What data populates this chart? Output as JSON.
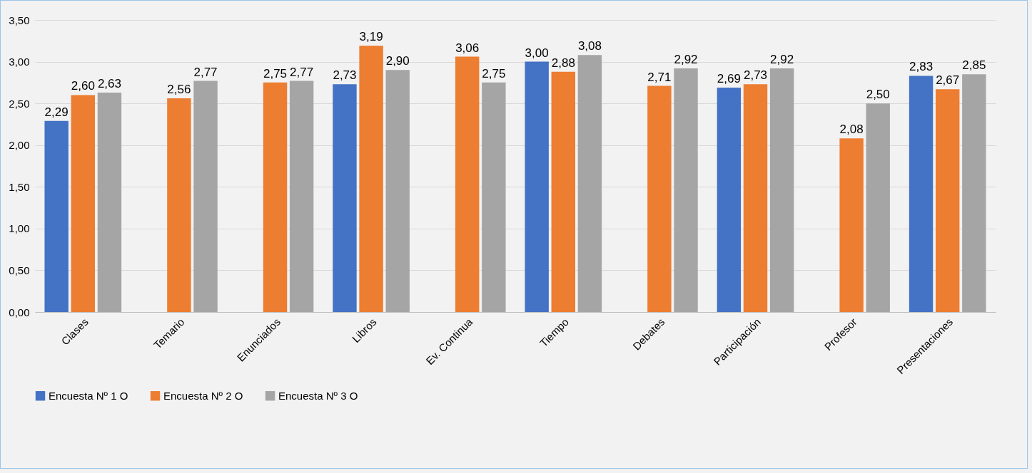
{
  "chart_data": {
    "type": "bar",
    "categories": [
      "Clases",
      "Temario",
      "Enunciados",
      "Libros",
      "Ev. Continua",
      "Tiempo",
      "Debates",
      "Participación",
      "Profesor",
      "Presentaciones"
    ],
    "series": [
      {
        "name": "Encuesta Nº 1 O",
        "color": "#4472c4",
        "values": [
          2.29,
          null,
          null,
          2.73,
          null,
          3.0,
          null,
          2.69,
          null,
          2.83
        ],
        "value_labels": [
          "2,29",
          null,
          null,
          "2,73",
          null,
          "3,00",
          null,
          "2,69",
          null,
          "2,83"
        ]
      },
      {
        "name": "Encuesta Nº 2 O",
        "color": "#ed7d31",
        "values": [
          2.6,
          2.56,
          2.75,
          3.19,
          3.06,
          2.88,
          2.71,
          2.73,
          2.08,
          2.67
        ],
        "value_labels": [
          "2,60",
          "2,56",
          "2,75",
          "3,19",
          "3,06",
          "2,88",
          "2,71",
          "2,73",
          "2,08",
          "2,67"
        ]
      },
      {
        "name": "Encuesta Nº 3 O",
        "color": "#a5a5a5",
        "values": [
          2.63,
          2.77,
          2.77,
          2.9,
          2.75,
          3.08,
          2.92,
          2.92,
          2.5,
          2.85
        ],
        "value_labels": [
          "2,63",
          "2,77",
          "2,77",
          "2,90",
          "2,75",
          "3,08",
          "2,92",
          "2,92",
          "2,50",
          "2,85"
        ]
      }
    ],
    "ylim": [
      0,
      3.5
    ],
    "yticks": [
      {
        "value": 0,
        "label": "0,00"
      },
      {
        "value": 0.5,
        "label": "0,50"
      },
      {
        "value": 1,
        "label": "1,00"
      },
      {
        "value": 1.5,
        "label": "1,50"
      },
      {
        "value": 2,
        "label": "2,00"
      },
      {
        "value": 2.5,
        "label": "2,50"
      },
      {
        "value": 3,
        "label": "3,00"
      },
      {
        "value": 3.5,
        "label": "3,50"
      }
    ],
    "grid": "y",
    "legend": "bottom"
  }
}
